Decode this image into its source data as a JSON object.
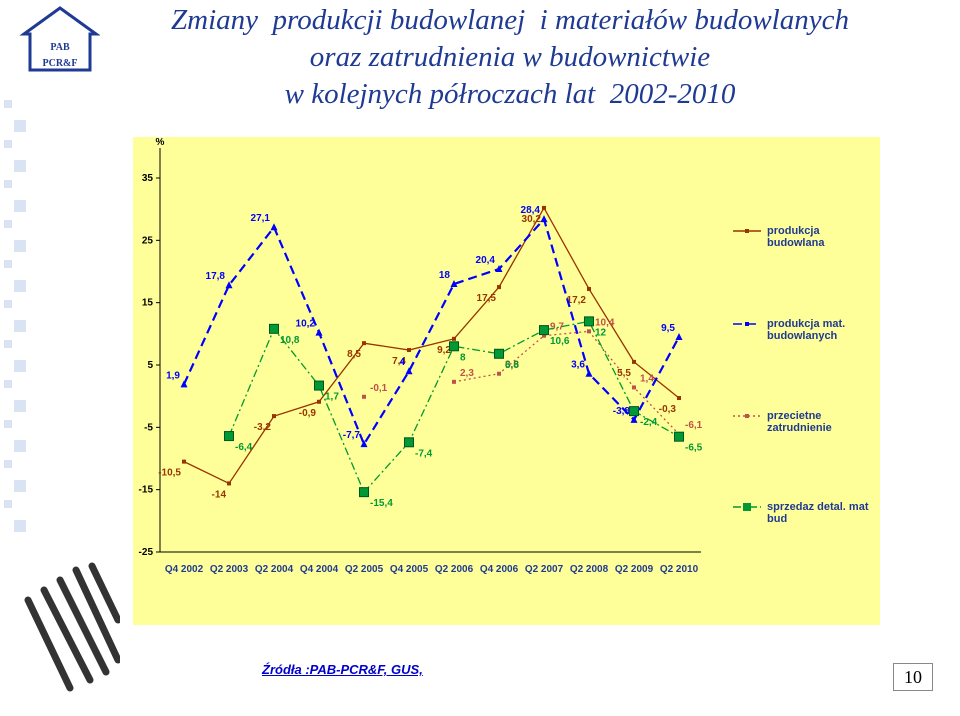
{
  "logo": {
    "name": "PAB",
    "sub": "PCR&F"
  },
  "chart_data": {
    "type": "line",
    "title": [
      "Zmiany  produkcji budowlanej  i materiałów budowlanych",
      "oraz zatrudnienia w budownictwie",
      "w kolejnych półroczach lat  2002-2010"
    ],
    "y_label": "%",
    "categories": [
      "Q4 2002",
      "Q2 2003",
      "Q2 2004",
      "Q4 2004",
      "Q2 2005",
      "Q4 2005",
      "Q2 2006",
      "Q4 2006",
      "Q2 2007",
      "Q2 2008",
      "Q2 2009",
      "Q2 2010"
    ],
    "ylim": [
      -25,
      35
    ],
    "yticks": [
      -25,
      -15,
      -5,
      5,
      15,
      25,
      35
    ],
    "grid": false,
    "legend": "right",
    "series": [
      {
        "name": "produkcja budowlana",
        "color": "#993300",
        "style": "solid",
        "marker": "square",
        "values": [
          -10.5,
          -14,
          -3.2,
          -0.9,
          8.5,
          7.4,
          9.2,
          17.5,
          30.2,
          17.2,
          5.5,
          -0.3
        ],
        "value_labels": [
          "-10,5",
          "-14",
          "-3,2",
          "-0,9",
          "8,5",
          "7,4",
          "9,2",
          "17,5",
          "30,2",
          "17,2",
          "5,5",
          "-0,3"
        ]
      },
      {
        "name": "produkcja mat. budowlanych",
        "color": "#0000ff",
        "style": "dashed",
        "marker": "triangle",
        "values": [
          1.9,
          17.8,
          27.1,
          10.2,
          -7.7,
          4,
          18,
          20.4,
          28.4,
          3.6,
          -3.8,
          9.5
        ],
        "value_labels": [
          "1,9",
          "17,8",
          "27,1",
          "10,2",
          "-7,7",
          "4",
          "18",
          "20,4",
          "28,4",
          "3,6",
          "-3,8",
          "9,5"
        ]
      },
      {
        "name": "przecietne zatrudnienie",
        "color": "#c0504d",
        "style": "dotted",
        "marker": "square",
        "values": [
          null,
          null,
          null,
          null,
          -0.1,
          null,
          2.3,
          3.6,
          9.7,
          10.4,
          1.4,
          -6.1
        ],
        "value_labels": [
          null,
          null,
          null,
          null,
          "-0,1",
          null,
          "2,3",
          "3,6",
          "9,7",
          "10,4",
          "1,4",
          "-6,1"
        ]
      },
      {
        "name": "sprzedaz detal. mat bud",
        "color": "#009933",
        "style": "dashdot",
        "marker": "box",
        "values": [
          null,
          -6.4,
          10.8,
          1.7,
          -15.4,
          -7.4,
          8,
          6.8,
          10.6,
          12,
          -2.4,
          -6.5
        ],
        "value_labels": [
          null,
          "-6,4",
          "10,8",
          "1,7",
          "-15,4",
          "-7,4",
          "8",
          "6,8",
          "10,6",
          "12",
          "-2,4",
          "-6,5"
        ]
      }
    ]
  },
  "source": "Źródła :PAB-PCR&F, GUS,",
  "page_number": 10
}
